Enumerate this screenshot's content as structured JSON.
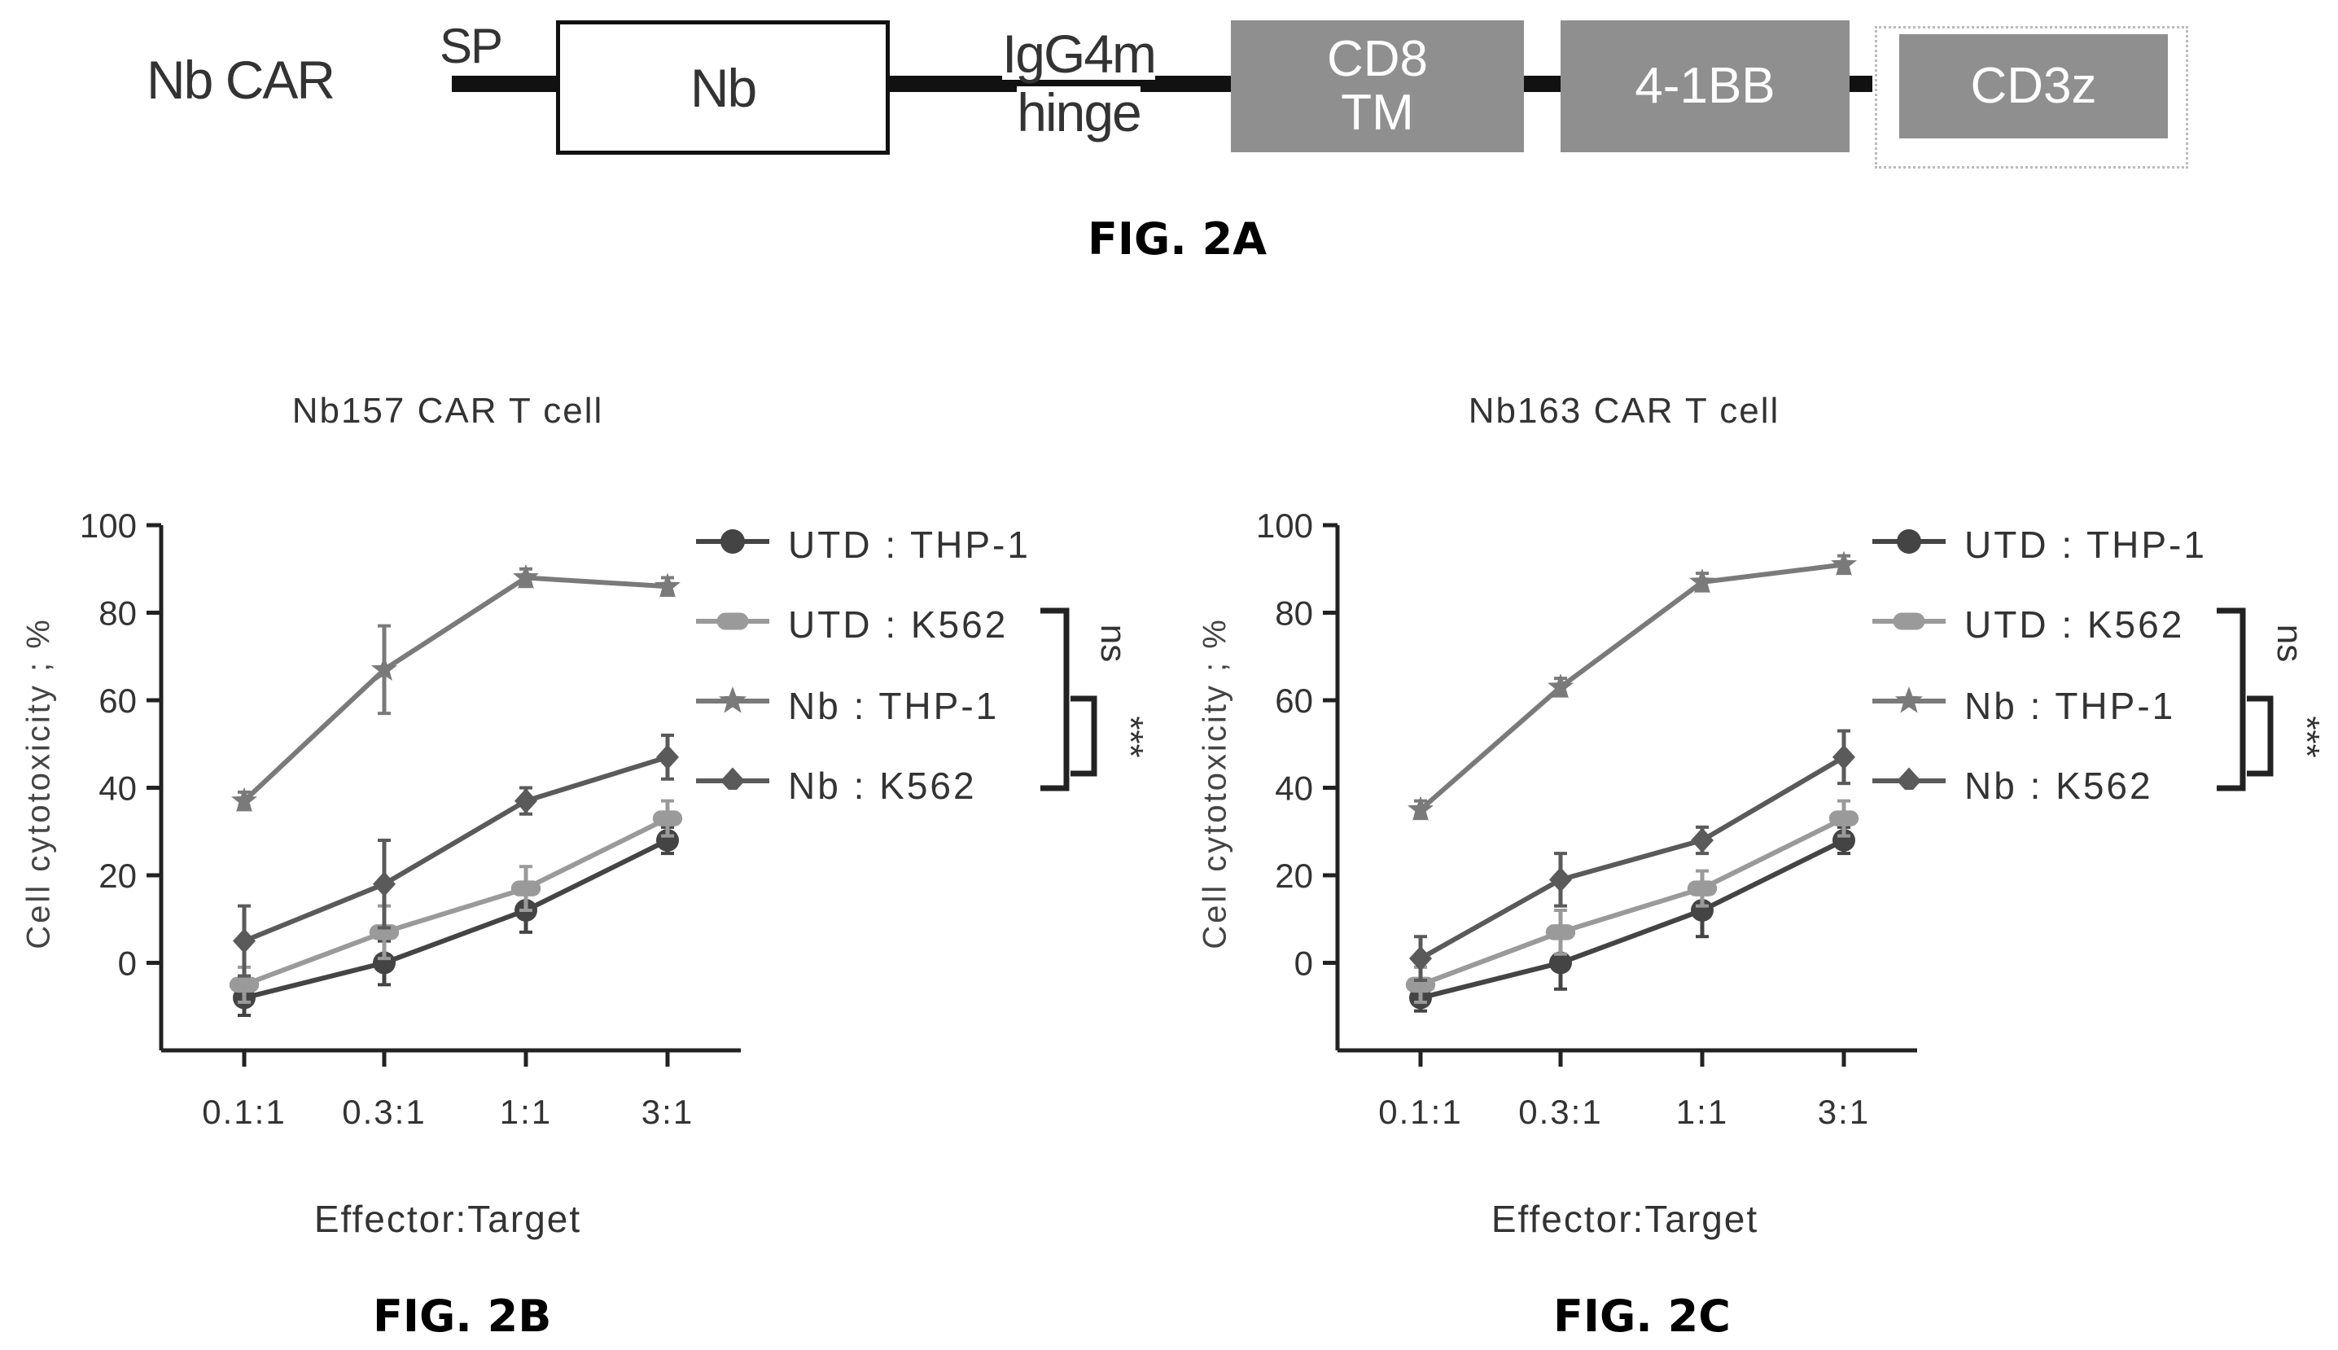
{
  "fig2a": {
    "caption": "FIG. 2A",
    "construct_name": "Nb CAR",
    "sp_label": "SP",
    "nb_label": "Nb",
    "hinge_line1": "IgG4m",
    "hinge_line2": "hinge",
    "cd8_line1": "CD8",
    "cd8_line2": "TM",
    "costim_label": "4-1BB",
    "cd3z_label": "CD3z",
    "colors": {
      "domain_box": "#8f8f8f",
      "linker": "#111111",
      "nb_box_border": "#111111"
    }
  },
  "legend": {
    "items": [
      {
        "label": "UTD : THP-1",
        "marker": "circle"
      },
      {
        "label": "UTD : K562",
        "marker": "pill"
      },
      {
        "label": "Nb : THP-1",
        "marker": "star"
      },
      {
        "label": "Nb : K562",
        "marker": "diamond"
      }
    ],
    "sig_ns": "ns",
    "sig_star": "***"
  },
  "chart_data": [
    {
      "type": "line",
      "caption": "FIG. 2B",
      "title": "Nb157 CAR T cell",
      "xlabel": "Effector:Target",
      "ylabel": "Cell cytotoxicity ; %",
      "categories": [
        "0.1:1",
        "0.3:1",
        "1:1",
        "3:1"
      ],
      "ylim": [
        -20,
        100
      ],
      "yticks": [
        0,
        20,
        40,
        60,
        80,
        100
      ],
      "grid": false,
      "legend_position": "right",
      "series": [
        {
          "name": "UTD : THP-1",
          "values": [
            -8,
            0,
            12,
            28
          ],
          "errors": [
            4,
            5,
            5,
            3
          ],
          "color": "#444444"
        },
        {
          "name": "UTD : K562",
          "values": [
            -5,
            7,
            17,
            33
          ],
          "errors": [
            4,
            6,
            5,
            4
          ],
          "color": "#9a9a9a"
        },
        {
          "name": "Nb : THP-1",
          "values": [
            37,
            67,
            88,
            86
          ],
          "errors": [
            2,
            10,
            2,
            2
          ],
          "color": "#7a7a7a"
        },
        {
          "name": "Nb : K562",
          "values": [
            5,
            18,
            37,
            47
          ],
          "errors": [
            8,
            10,
            3,
            5
          ],
          "color": "#5a5a5a"
        }
      ]
    },
    {
      "type": "line",
      "caption": "FIG. 2C",
      "title": "Nb163 CAR  T cell",
      "xlabel": "Effector:Target",
      "ylabel": "Cell cytotoxicity ; %",
      "categories": [
        "0.1:1",
        "0.3:1",
        "1:1",
        "3:1"
      ],
      "ylim": [
        -20,
        100
      ],
      "yticks": [
        0,
        20,
        40,
        60,
        80,
        100
      ],
      "grid": false,
      "legend_position": "right",
      "series": [
        {
          "name": "UTD : THP-1",
          "values": [
            -8,
            0,
            12,
            28
          ],
          "errors": [
            3,
            6,
            6,
            3
          ],
          "color": "#444444"
        },
        {
          "name": "UTD : K562",
          "values": [
            -5,
            7,
            17,
            33
          ],
          "errors": [
            4,
            5,
            4,
            4
          ],
          "color": "#9a9a9a"
        },
        {
          "name": "Nb : THP-1",
          "values": [
            35,
            63,
            87,
            91
          ],
          "errors": [
            2,
            2,
            2,
            2
          ],
          "color": "#7a7a7a"
        },
        {
          "name": "Nb : K562",
          "values": [
            1,
            19,
            28,
            47
          ],
          "errors": [
            5,
            6,
            3,
            6
          ],
          "color": "#5a5a5a"
        }
      ]
    }
  ]
}
